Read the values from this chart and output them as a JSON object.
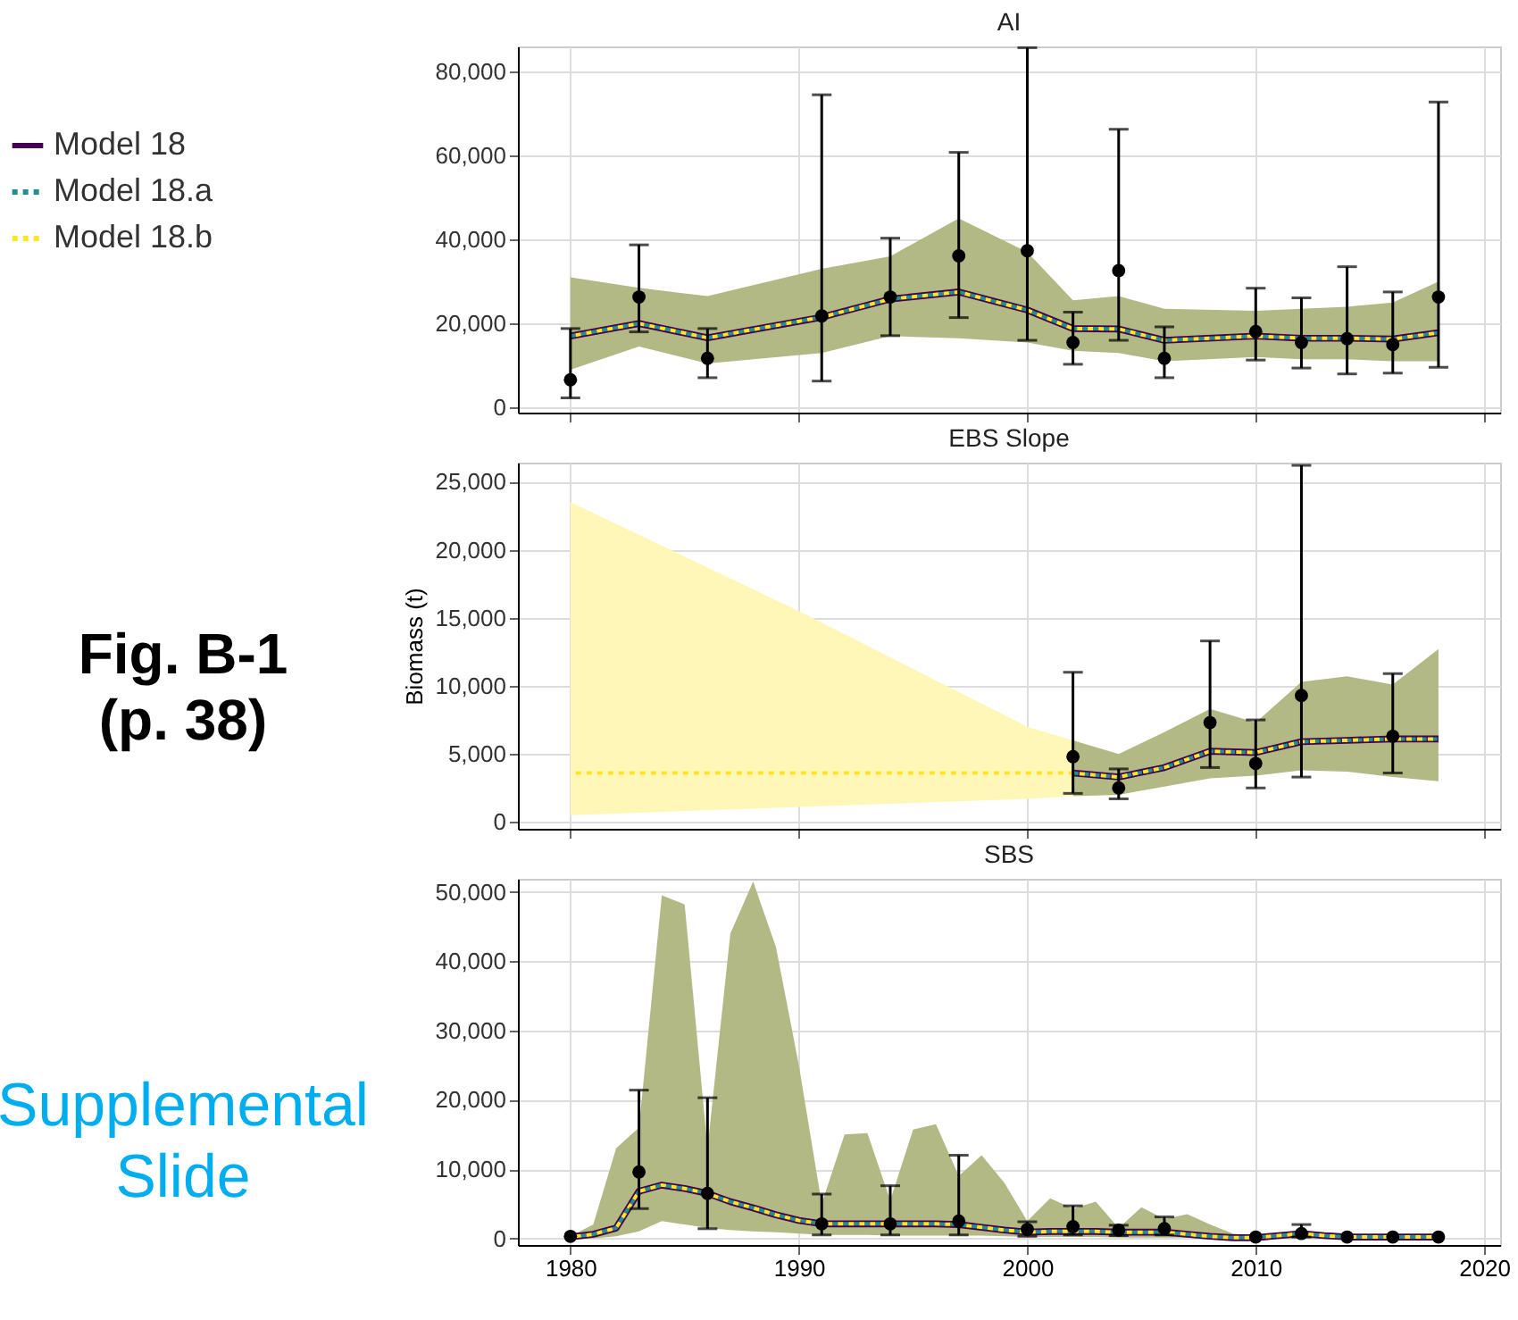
{
  "chart_data": [
    {
      "type": "line",
      "title": "AI",
      "xlim": [
        1977.7,
        2020.7
      ],
      "xticks": [
        1980,
        1990,
        2000,
        2010,
        2020
      ],
      "ylim": [
        -1200,
        85900
      ],
      "yticks": [
        {
          "value": 0,
          "label": "0"
        },
        {
          "value": 20000,
          "label": "20,000"
        },
        {
          "value": 40000,
          "label": "40,000"
        },
        {
          "value": 60000,
          "label": "60,000"
        },
        {
          "value": 80000,
          "label": "80,000"
        }
      ],
      "grid": true,
      "tick_labels": "y",
      "legend": "left",
      "series": [
        {
          "name": "Model 18",
          "color": "#440154",
          "line_style": "solid",
          "x": [
            1980,
            1983,
            1986,
            1991,
            1994,
            1997,
            2000,
            2002,
            2004,
            2006,
            2010,
            2012,
            2014,
            2016,
            2018
          ],
          "values": [
            17000,
            20000,
            16600,
            21500,
            25800,
            27500,
            23200,
            18800,
            18700,
            16000,
            17000,
            16500,
            16500,
            16300,
            17800
          ],
          "lower": [
            9000,
            14500,
            10500,
            13000,
            17000,
            16500,
            15500,
            13500,
            13000,
            11000,
            12000,
            11500,
            11500,
            11000,
            11000
          ],
          "upper": [
            31000,
            28500,
            26500,
            33000,
            36000,
            45000,
            37000,
            25500,
            26500,
            23500,
            23000,
            23500,
            24000,
            25000,
            30000
          ]
        },
        {
          "name": "Model 18.a",
          "color": "#21908c",
          "line_style": "dashed",
          "x": [
            1980,
            1983,
            1986,
            1991,
            1994,
            1997,
            2000,
            2002,
            2004,
            2006,
            2010,
            2012,
            2014,
            2016,
            2018
          ],
          "values": [
            17000,
            20000,
            16600,
            21500,
            25800,
            27500,
            23200,
            18800,
            18700,
            16000,
            17000,
            16500,
            16500,
            16300,
            17800
          ]
        },
        {
          "name": "Model 18.b",
          "color": "#fde725",
          "line_style": "dashed",
          "x": [
            1980,
            1983,
            1986,
            1991,
            1994,
            1997,
            2000,
            2002,
            2004,
            2006,
            2010,
            2012,
            2014,
            2016,
            2018
          ],
          "values": [
            17000,
            20000,
            16600,
            21500,
            25800,
            27500,
            23200,
            18800,
            18700,
            16000,
            17000,
            16500,
            16500,
            16300,
            17800
          ]
        },
        {
          "type": "scatter",
          "color": "#000000",
          "marker": "circle",
          "x": [
            1980,
            1983,
            1986,
            1991,
            1994,
            1997,
            2000,
            2002,
            2004,
            2006,
            2010,
            2012,
            2014,
            2016,
            2018
          ],
          "values": [
            6600,
            26300,
            11700,
            21800,
            26300,
            36100,
            37300,
            15500,
            32600,
            11700,
            18100,
            15500,
            16400,
            15000,
            26300
          ],
          "errors": [
            [
              2300,
              18800
            ],
            [
              18000,
              38700
            ],
            [
              7100,
              18800
            ],
            [
              6300,
              74400
            ],
            [
              17100,
              40300
            ],
            [
              21400,
              60700
            ],
            [
              16000,
              85600
            ],
            [
              10300,
              22700
            ],
            [
              16000,
              66200
            ],
            [
              7100,
              19200
            ],
            [
              11300,
              28400
            ],
            [
              9400,
              26100
            ],
            [
              8000,
              33500
            ],
            [
              8200,
              27500
            ],
            [
              9600,
              72700
            ]
          ]
        }
      ]
    },
    {
      "type": "line",
      "title": "EBS Slope",
      "ylabel": "Biomass (t)",
      "xlim": [
        1977.7,
        2020.7
      ],
      "xticks": [
        1980,
        1990,
        2000,
        2010,
        2020
      ],
      "ylim": [
        -500,
        26400
      ],
      "yticks": [
        {
          "value": 0,
          "label": "0"
        },
        {
          "value": 5000,
          "label": "5,000"
        },
        {
          "value": 10000,
          "label": "10,000"
        },
        {
          "value": 15000,
          "label": "15,000"
        },
        {
          "value": 20000,
          "label": "20,000"
        },
        {
          "value": 25000,
          "label": "25,000"
        }
      ],
      "grid": true,
      "tick_labels": "y",
      "annotations": [
        "Fig. B-1",
        "(p. 38)"
      ],
      "series": [
        {
          "name": "Model 18",
          "color": "#440154",
          "line_style": "solid",
          "x": [
            2002,
            2004,
            2006,
            2008,
            2010,
            2012,
            2014,
            2016,
            2018
          ],
          "values": [
            3600,
            3300,
            4000,
            5200,
            5100,
            5900,
            6000,
            6100,
            6100
          ],
          "lower": [
            1900,
            2000,
            2600,
            3200,
            3400,
            3800,
            3700,
            3300,
            3000
          ],
          "upper": [
            6000,
            5000,
            6600,
            8300,
            7300,
            10300,
            10700,
            10100,
            12700
          ]
        },
        {
          "name": "Model 18.a",
          "color": "#21908c",
          "line_style": "dashed",
          "x": [
            2002,
            2004,
            2006,
            2008,
            2010,
            2012,
            2014,
            2016,
            2018
          ],
          "values": [
            3600,
            3300,
            4000,
            5200,
            5100,
            5900,
            6000,
            6100,
            6100
          ]
        },
        {
          "name": "Model 18.b",
          "color": "#fde725",
          "line_style": "dashed",
          "x": [
            1980,
            1990,
            2000,
            2002,
            2004,
            2006,
            2008,
            2010,
            2012,
            2014,
            2016,
            2018
          ],
          "values": [
            3600,
            3600,
            3600,
            3600,
            3300,
            4000,
            5200,
            5100,
            5900,
            6000,
            6100,
            6100
          ],
          "lower": [
            500,
            1100,
            1700,
            1900,
            null,
            null,
            null,
            null,
            null,
            null,
            null,
            null
          ],
          "upper": [
            23500,
            15500,
            7000,
            6000,
            null,
            null,
            null,
            null,
            null,
            null,
            null,
            null
          ]
        },
        {
          "type": "scatter",
          "color": "#000000",
          "marker": "circle",
          "x": [
            2002,
            2004,
            2008,
            2010,
            2012,
            2016
          ],
          "values": [
            4800,
            2500,
            7300,
            4300,
            9300,
            6300
          ],
          "errors": [
            [
              2100,
              11000
            ],
            [
              1700,
              3900
            ],
            [
              4000,
              13300
            ],
            [
              2500,
              7500
            ],
            [
              3300,
              26200
            ],
            [
              3600,
              10900
            ]
          ]
        }
      ]
    },
    {
      "type": "line",
      "title": "SBS",
      "xlim": [
        1977.7,
        2020.7
      ],
      "xticks": [
        1980,
        1990,
        2000,
        2010,
        2020
      ],
      "ylim": [
        -950,
        51900
      ],
      "yticks": [
        {
          "value": 0,
          "label": "0"
        },
        {
          "value": 10000,
          "label": "10,000"
        },
        {
          "value": 20000,
          "label": "20,000"
        },
        {
          "value": 30000,
          "label": "30,000"
        },
        {
          "value": 40000,
          "label": "40,000"
        },
        {
          "value": 50000,
          "label": "50,000"
        }
      ],
      "grid": true,
      "annotations": [
        "Supplemental Slide"
      ],
      "series": [
        {
          "name": "Model 18",
          "color": "#440154",
          "line_style": "solid",
          "x": [
            1980,
            1981,
            1982,
            1983,
            1984,
            1985,
            1986,
            1987,
            1988,
            1989,
            1990,
            1991,
            1992,
            1993,
            1994,
            1995,
            1996,
            1997,
            1998,
            1999,
            2000,
            2001,
            2002,
            2003,
            2004,
            2005,
            2006,
            2007,
            2008,
            2009,
            2010,
            2011,
            2012,
            2013,
            2014,
            2015,
            2016,
            2017,
            2018
          ],
          "values": [
            200,
            600,
            1500,
            6800,
            7700,
            7200,
            6500,
            5300,
            4400,
            3400,
            2600,
            2100,
            2100,
            2100,
            2100,
            2100,
            2100,
            2000,
            1600,
            1200,
            900,
            1000,
            1000,
            1000,
            900,
            900,
            900,
            600,
            300,
            100,
            100,
            400,
            700,
            400,
            200,
            200,
            200,
            200,
            200
          ],
          "lower": [
            0,
            0,
            300,
            1000,
            2500,
            2000,
            1500,
            1200,
            1000,
            900,
            700,
            500,
            500,
            500,
            400,
            400,
            400,
            400,
            400,
            300,
            200,
            200,
            200,
            200,
            100,
            100,
            100,
            100,
            0,
            0,
            0,
            0,
            0,
            0,
            0,
            0,
            0,
            0,
            0
          ],
          "upper": [
            300,
            2000,
            13000,
            16000,
            49500,
            48200,
            13000,
            44000,
            51500,
            42000,
            25000,
            5000,
            15000,
            15200,
            5500,
            15700,
            16500,
            9000,
            12000,
            8000,
            2500,
            5800,
            4300,
            5300,
            1500,
            4500,
            2800,
            3500,
            2000,
            700,
            300,
            500,
            800,
            500,
            300,
            300,
            300,
            300,
            300
          ]
        },
        {
          "name": "Model 18.a",
          "color": "#21908c",
          "line_style": "dashed",
          "x": [
            1980,
            1981,
            1982,
            1983,
            1984,
            1985,
            1986,
            1987,
            1988,
            1989,
            1990,
            1991,
            1992,
            1993,
            1994,
            1995,
            1996,
            1997,
            1998,
            1999,
            2000,
            2001,
            2002,
            2003,
            2004,
            2005,
            2006,
            2007,
            2008,
            2009,
            2010,
            2011,
            2012,
            2013,
            2014,
            2015,
            2016,
            2017,
            2018
          ],
          "values": [
            200,
            600,
            1500,
            6800,
            7700,
            7200,
            6500,
            5300,
            4400,
            3400,
            2600,
            2100,
            2100,
            2100,
            2100,
            2100,
            2100,
            2000,
            1600,
            1200,
            900,
            1000,
            1000,
            1000,
            900,
            900,
            900,
            600,
            300,
            100,
            100,
            400,
            700,
            400,
            200,
            200,
            200,
            200,
            200
          ]
        },
        {
          "name": "Model 18.b",
          "color": "#fde725",
          "line_style": "dashed",
          "x": [
            1980,
            1981,
            1982,
            1983,
            1984,
            1985,
            1986,
            1987,
            1988,
            1989,
            1990,
            1991,
            1992,
            1993,
            1994,
            1995,
            1996,
            1997,
            1998,
            1999,
            2000,
            2001,
            2002,
            2003,
            2004,
            2005,
            2006,
            2007,
            2008,
            2009,
            2010,
            2011,
            2012,
            2013,
            2014,
            2015,
            2016,
            2017,
            2018
          ],
          "values": [
            200,
            600,
            1500,
            6800,
            7700,
            7200,
            6500,
            5300,
            4400,
            3400,
            2600,
            2100,
            2100,
            2100,
            2100,
            2100,
            2100,
            2000,
            1600,
            1200,
            900,
            1000,
            1000,
            1000,
            900,
            900,
            900,
            600,
            300,
            100,
            100,
            400,
            700,
            400,
            200,
            200,
            200,
            200,
            200
          ]
        },
        {
          "type": "scatter",
          "color": "#000000",
          "marker": "circle",
          "x": [
            1980,
            1983,
            1986,
            1991,
            1994,
            1997,
            2000,
            2002,
            2004,
            2006,
            2010,
            2012,
            2014,
            2016,
            2018
          ],
          "values": [
            300,
            9600,
            6500,
            2100,
            2100,
            2500,
            1300,
            1700,
            1200,
            1400,
            200,
            700,
            200,
            200,
            200
          ],
          "errors": [
            null,
            [
              4300,
              21400
            ],
            [
              1400,
              20300
            ],
            [
              500,
              6400
            ],
            [
              500,
              7600
            ],
            [
              500,
              12000
            ],
            [
              300,
              2400
            ],
            [
              500,
              4700
            ],
            [
              400,
              1900
            ],
            [
              500,
              3100
            ],
            null,
            [
              200,
              2000
            ],
            null,
            null,
            null
          ]
        }
      ]
    }
  ]
}
